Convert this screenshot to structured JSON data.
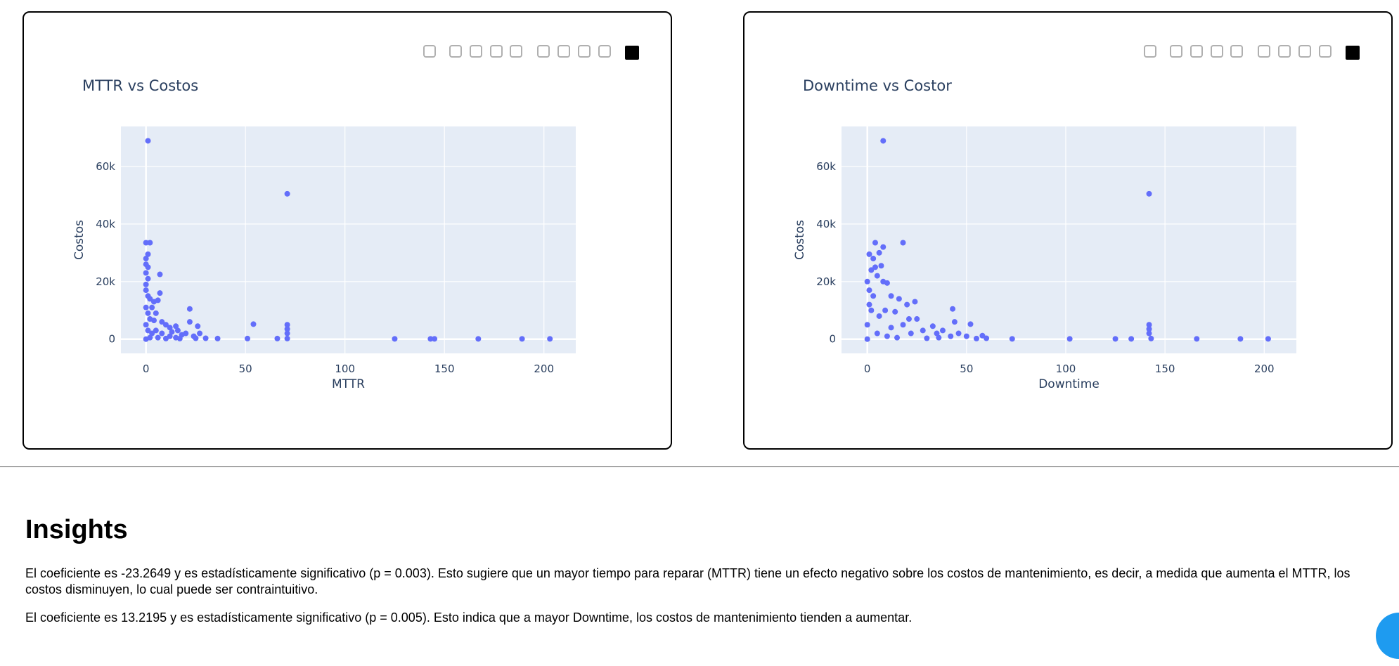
{
  "chart_data": [
    {
      "type": "scatter",
      "title": "MTTR vs Costos",
      "x_label": "MTTR",
      "y_label": "Costos",
      "color": "#636efa",
      "grid": true,
      "xlim": [
        -12.6,
        216
      ],
      "ylim": [
        -4950,
        73900
      ],
      "xticks": [
        0,
        50,
        100,
        150,
        200
      ],
      "yticks": [
        0,
        {
          "value": 20000,
          "label": "20k"
        },
        {
          "value": 40000,
          "label": "40k"
        },
        {
          "value": 60000,
          "label": "60k"
        }
      ],
      "x": [
        1,
        71,
        0,
        2,
        1,
        0,
        0,
        1,
        0,
        1,
        0,
        0,
        1,
        2,
        6,
        4,
        7,
        7,
        3,
        1,
        5,
        2,
        4,
        8,
        10,
        12,
        15,
        16,
        22,
        22,
        26,
        27,
        20,
        18,
        24,
        30,
        36,
        5,
        3,
        8,
        12,
        15,
        6,
        0,
        2,
        10,
        51,
        54,
        66,
        71,
        71,
        71,
        71,
        125,
        143,
        145,
        167,
        189,
        203,
        0,
        0,
        1,
        13,
        17,
        25
      ],
      "values": [
        68900,
        50500,
        33500,
        33500,
        29500,
        28000,
        26000,
        25000,
        23000,
        21000,
        19000,
        17000,
        15000,
        14000,
        13500,
        13000,
        16000,
        22500,
        11000,
        9000,
        9000,
        7000,
        6500,
        6000,
        5000,
        4000,
        4500,
        3000,
        10500,
        6000,
        4500,
        2000,
        2000,
        1500,
        1000,
        300,
        200,
        3000,
        2000,
        2000,
        1000,
        500,
        500,
        0,
        500,
        200,
        200,
        5200,
        200,
        5000,
        3500,
        2000,
        200,
        100,
        100,
        100,
        100,
        100,
        100,
        11000,
        5000,
        3000,
        2500,
        200,
        300
      ]
    },
    {
      "type": "scatter",
      "title": "Downtime vs Costor",
      "x_label": "Downtime",
      "y_label": "Costos",
      "color": "#636efa",
      "grid": true,
      "xlim": [
        -13,
        216.2
      ],
      "ylim": [
        -4950,
        73900
      ],
      "xticks": [
        0,
        50,
        100,
        150,
        200
      ],
      "yticks": [
        0,
        {
          "value": 20000,
          "label": "20k"
        },
        {
          "value": 40000,
          "label": "40k"
        },
        {
          "value": 60000,
          "label": "60k"
        }
      ],
      "x": [
        8,
        142,
        4,
        18,
        8,
        1,
        3,
        6,
        4,
        7,
        2,
        5,
        8,
        10,
        1,
        3,
        12,
        16,
        20,
        24,
        9,
        14,
        6,
        21,
        25,
        43,
        44,
        33,
        38,
        52,
        18,
        12,
        28,
        35,
        36,
        42,
        46,
        50,
        55,
        58,
        60,
        73,
        102,
        125,
        133,
        142,
        142,
        142,
        143,
        166,
        188,
        202,
        0,
        2,
        0,
        5,
        10,
        15,
        22,
        30,
        0,
        1
      ],
      "values": [
        68900,
        50500,
        33500,
        33500,
        32000,
        29500,
        28000,
        30000,
        25000,
        25500,
        24000,
        22000,
        20000,
        19500,
        17000,
        15000,
        15000,
        14000,
        12000,
        13000,
        10000,
        9500,
        8000,
        7000,
        7000,
        10500,
        6000,
        4500,
        3000,
        5200,
        5000,
        4000,
        3000,
        2000,
        500,
        1000,
        2000,
        1000,
        200,
        1200,
        300,
        100,
        100,
        100,
        100,
        5000,
        3500,
        2000,
        200,
        100,
        100,
        100,
        0,
        10000,
        5000,
        2000,
        1000,
        500,
        2000,
        300,
        20000,
        12000
      ]
    }
  ],
  "insights": {
    "heading": "Insights",
    "paragraphs": [
      "El coeficiente es -23.2649 y es estadísticamente significativo (p = 0.003). Esto sugiere que un mayor tiempo para reparar (MTTR) tiene un efecto negativo sobre los costos de mantenimiento, es decir, a medida que aumenta el MTTR, los costos disminuyen, lo cual puede ser contraintuitivo.",
      "El coeficiente es 13.2195 y es estadísticamente significativo (p = 0.005). Esto indica que a mayor Downtime, los costos de mantenimiento tienden a aumentar."
    ]
  }
}
